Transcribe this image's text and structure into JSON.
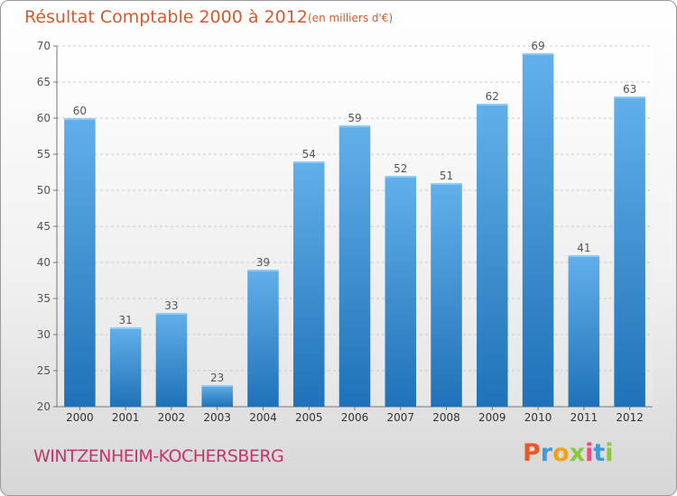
{
  "title": "Résultat Comptable 2000 à 2012",
  "subtitle": "(en milliers d'€)",
  "commune": "WINTZENHEIM-KOCHERSBERG",
  "brand": {
    "letters": [
      "P",
      "r",
      "o",
      "x",
      "i",
      "t",
      "i"
    ],
    "colors": [
      "#e8582a",
      "#3f9bd8",
      "#f2a21a",
      "#8dc63f",
      "#e94b86",
      "#3f9bd8",
      "#8dc63f"
    ]
  },
  "colors": {
    "bar": "#3d8fd6",
    "bar_light": "#62b0ea",
    "bar_dark": "#1f72b8",
    "text": "#555555",
    "title": "#d35a2b"
  },
  "chart_data": {
    "type": "bar",
    "title": "Résultat Comptable 2000 à 2012",
    "subtitle": "(en milliers d'€)",
    "categories": [
      "2000",
      "2001",
      "2002",
      "2003",
      "2004",
      "2005",
      "2006",
      "2007",
      "2008",
      "2009",
      "2010",
      "2011",
      "2012"
    ],
    "values": [
      60,
      31,
      33,
      23,
      39,
      54,
      59,
      52,
      51,
      62,
      69,
      41,
      63
    ],
    "ylim": [
      20,
      70
    ],
    "yticks": [
      20,
      25,
      30,
      35,
      40,
      45,
      50,
      55,
      60,
      65,
      70
    ],
    "xlabel": "",
    "ylabel": "",
    "grid": true
  }
}
